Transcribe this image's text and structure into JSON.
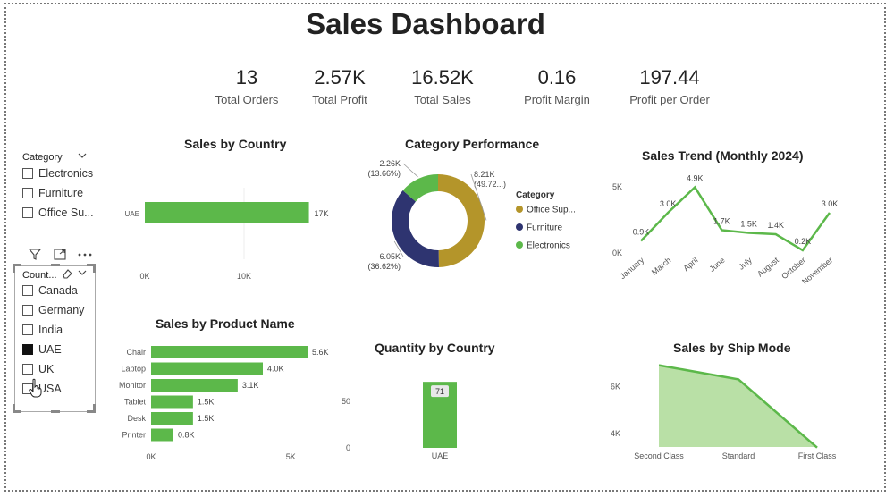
{
  "dashboard": {
    "title": "Sales Dashboard"
  },
  "kpis": [
    {
      "value": "13",
      "label": "Total Orders"
    },
    {
      "value": "2.57K",
      "label": "Total Profit"
    },
    {
      "value": "16.52K",
      "label": "Total Sales"
    },
    {
      "value": "0.16",
      "label": "Profit Margin"
    },
    {
      "value": "197.44",
      "label": "Profit per Order"
    }
  ],
  "category_slicer": {
    "title": "Category",
    "items": [
      {
        "label": "Electronics",
        "checked": false
      },
      {
        "label": "Furniture",
        "checked": false
      },
      {
        "label": "Office Su...",
        "checked": false
      }
    ]
  },
  "country_slicer": {
    "title": "Count...",
    "items": [
      {
        "label": "Canada",
        "checked": false
      },
      {
        "label": "Germany",
        "checked": false
      },
      {
        "label": "India",
        "checked": false
      },
      {
        "label": "UAE",
        "checked": true
      },
      {
        "label": "UK",
        "checked": false
      },
      {
        "label": "USA",
        "checked": false
      }
    ]
  },
  "colors": {
    "green": "#5cb84a",
    "light_green": "#b9e0a6",
    "olive": "#b4952a",
    "navy": "#2e3470",
    "text": "#222222"
  },
  "chart_data": [
    {
      "id": "sales_by_country",
      "type": "bar",
      "orientation": "horizontal",
      "title": "Sales by Country",
      "categories": [
        "UAE"
      ],
      "values": [
        16520
      ],
      "data_labels": [
        "17K"
      ],
      "xticks": [
        "0K",
        "10K"
      ],
      "xlim": [
        0,
        18000
      ]
    },
    {
      "id": "category_performance",
      "type": "pie",
      "variant": "donut",
      "title": "Category Performance",
      "legend_title": "Category",
      "legend_position": "right",
      "slices": [
        {
          "name": "Office Sup...",
          "value": 8210,
          "label": "8.21K",
          "pct": "(49.72...)"
        },
        {
          "name": "Furniture",
          "value": 6050,
          "label": "6.05K",
          "pct": "(36.62%)"
        },
        {
          "name": "Electronics",
          "value": 2260,
          "label": "2.26K",
          "pct": "(13.66%)"
        }
      ]
    },
    {
      "id": "sales_trend",
      "type": "line",
      "title": "Sales Trend (Monthly 2024)",
      "x": [
        "January",
        "March",
        "April",
        "June",
        "July",
        "August",
        "October",
        "November"
      ],
      "values": [
        900,
        3000,
        4900,
        1700,
        1500,
        1400,
        200,
        3000
      ],
      "data_labels": [
        "0.9K",
        "3.0K",
        "4.9K",
        "1.7K",
        "1.5K",
        "1.4K",
        "0.2K",
        "3.0K"
      ],
      "yticks": [
        "5K",
        "0K"
      ],
      "ylim": [
        0,
        5000
      ]
    },
    {
      "id": "sales_by_product",
      "type": "bar",
      "orientation": "horizontal",
      "title": "Sales by Product Name",
      "categories": [
        "Chair",
        "Laptop",
        "Monitor",
        "Tablet",
        "Desk",
        "Printer"
      ],
      "values": [
        5600,
        4000,
        3100,
        1500,
        1500,
        800
      ],
      "data_labels": [
        "5.6K",
        "4.0K",
        "3.1K",
        "1.5K",
        "1.5K",
        "0.8K"
      ],
      "xticks": [
        "0K",
        "5K"
      ],
      "xlim": [
        0,
        5600
      ]
    },
    {
      "id": "quantity_by_country",
      "type": "bar",
      "title": "Quantity by Country",
      "categories": [
        "UAE"
      ],
      "values": [
        71
      ],
      "data_labels": [
        "71"
      ],
      "yticks": [
        "50",
        "0"
      ],
      "ylim": [
        0,
        75
      ]
    },
    {
      "id": "sales_by_ship_mode",
      "type": "area",
      "title": "Sales by Ship Mode",
      "categories": [
        "Second Class",
        "Standard",
        "First Class"
      ],
      "values": [
        6900,
        6300,
        3400
      ],
      "yticks": [
        "6K",
        "4K"
      ],
      "ylim": [
        3200,
        7000
      ]
    }
  ]
}
